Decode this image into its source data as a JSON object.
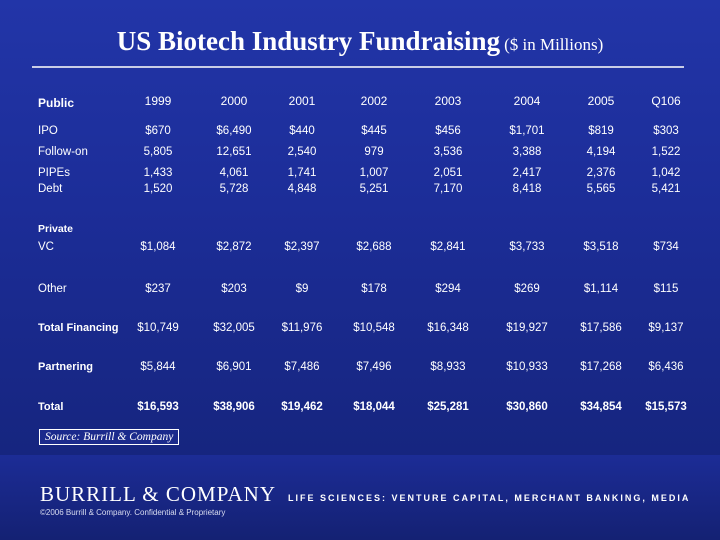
{
  "title": {
    "main": "US Biotech Industry Fundraising",
    "sub": "($ in Millions)"
  },
  "table": {
    "public_label": "Public",
    "private_label": "Private",
    "columns": [
      "1999",
      "2000",
      "2001",
      "2002",
      "2003",
      "2004",
      "2005",
      "Q106"
    ],
    "rows": [
      {
        "label": "IPO",
        "bold": false,
        "values": [
          "$670",
          "$6,490",
          "$440",
          "$445",
          "$456",
          "$1,701",
          "$819",
          "$303"
        ]
      },
      {
        "label": "Follow-on",
        "bold": false,
        "values": [
          "5,805",
          "12,651",
          "2,540",
          "979",
          "3,536",
          "3,388",
          "4,194",
          "1,522"
        ]
      },
      {
        "label": "PIPEs",
        "bold": false,
        "values": [
          "1,433",
          "4,061",
          "1,741",
          "1,007",
          "2,051",
          "2,417",
          "2,376",
          "1,042"
        ]
      },
      {
        "label": "Debt",
        "bold": false,
        "values": [
          "1,520",
          "5,728",
          "4,848",
          "5,251",
          "7,170",
          "8,418",
          "5,565",
          "5,421"
        ]
      },
      {
        "label": "VC",
        "bold": false,
        "values": [
          "$1,084",
          "$2,872",
          "$2,397",
          "$2,688",
          "$2,841",
          "$3,733",
          "$3,518",
          "$734"
        ]
      },
      {
        "label": "Other",
        "bold": false,
        "values": [
          "$237",
          "$203",
          "$9",
          "$178",
          "$294",
          "$269",
          "$1,114",
          "$115"
        ]
      },
      {
        "label": "Total Financing",
        "bold": true,
        "values": [
          "$10,749",
          "$32,005",
          "$11,976",
          "$10,548",
          "$16,348",
          "$19,927",
          "$17,586",
          "$9,137"
        ]
      },
      {
        "label": "Partnering",
        "bold": true,
        "values": [
          "$5,844",
          "$6,901",
          "$7,486",
          "$7,496",
          "$8,933",
          "$10,933",
          "$17,268",
          "$6,436"
        ]
      },
      {
        "label": "Total",
        "bold": true,
        "values": [
          "$16,593",
          "$38,906",
          "$19,462",
          "$18,044",
          "$25,281",
          "$30,860",
          "$34,854",
          "$15,573"
        ]
      }
    ]
  },
  "source": "Source: Burrill & Company",
  "footer": {
    "logo": "BURRILL & COMPANY",
    "copyright": "©2006 Burrill & Company. Confidential & Proprietary",
    "tagline": "LIFE SCIENCES: VENTURE CAPITAL, MERCHANT BANKING, MEDIA"
  }
}
